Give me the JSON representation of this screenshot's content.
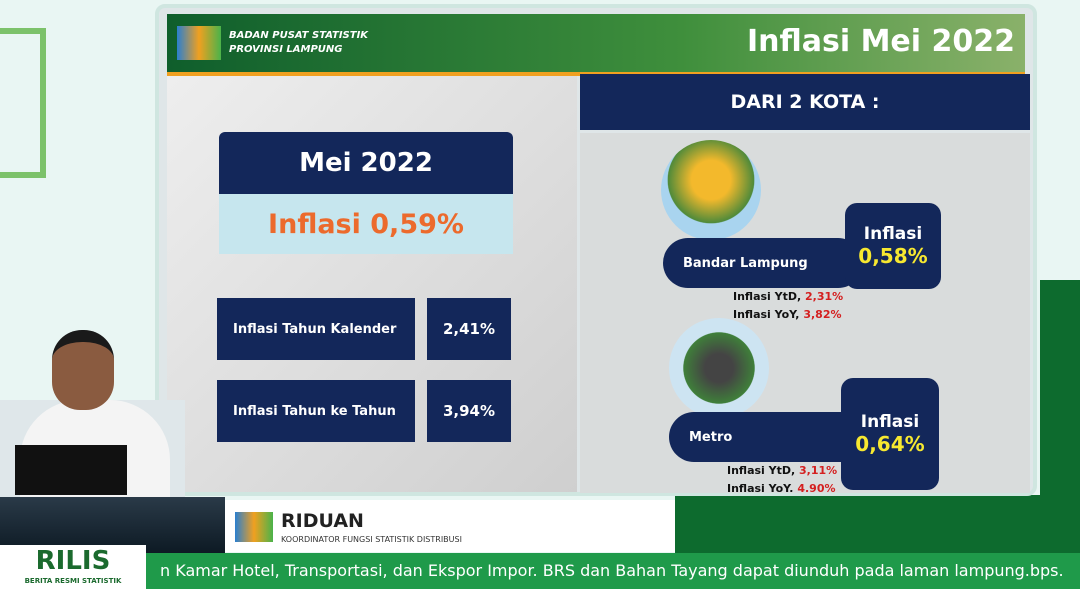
{
  "header": {
    "org_line1": "BADAN PUSAT STATISTIK",
    "org_line2": "PROVINSI LAMPUNG",
    "title": "Inflasi Mei 2022"
  },
  "summary": {
    "period": "Mei 2022",
    "headline": "Inflasi 0,59%",
    "rows": [
      {
        "label": "Inflasi Tahun Kalender",
        "value": "2,41%"
      },
      {
        "label": "Inflasi Tahun ke Tahun",
        "value": "3,94%"
      }
    ]
  },
  "cities_panel": {
    "heading": "DARI 2 KOTA :",
    "cities": [
      {
        "name": "Bandar Lampung",
        "inflation_label": "Inflasi",
        "inflation": "0,58%",
        "ytd_label": "Inflasi YtD,",
        "ytd": "2,31%",
        "yoy_label": "Inflasi YoY,",
        "yoy": "3,82%"
      },
      {
        "name": "Metro",
        "inflation_label": "Inflasi",
        "inflation": "0,64%",
        "ytd_label": "Inflasi YtD,",
        "ytd": "3,11%",
        "yoy_label": "Inflasi YoY,",
        "yoy": "4,90%"
      }
    ]
  },
  "speaker": {
    "name": "RIDUAN",
    "role": "KOORDINATOR FUNGSI STATISTIK DISTRIBUSI"
  },
  "program": {
    "title": "RILIS",
    "subtitle": "BERITA RESMI STATISTIK"
  },
  "ticker": "n Kamar Hotel, Transportasi, dan Ekspor Impor. BRS dan Bahan Tayang dapat diunduh pada laman lampung.bps."
}
